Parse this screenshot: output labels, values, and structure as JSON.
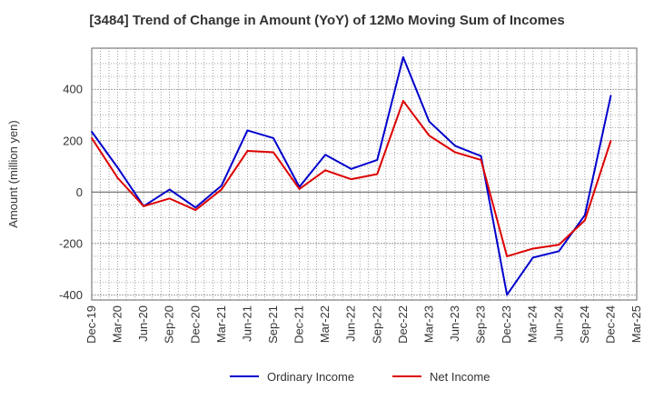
{
  "chart_data": {
    "type": "line",
    "title": "[3484]  Trend of Change in Amount (YoY) of 12Mo Moving Sum of Incomes",
    "ylabel": "Amount (million yen)",
    "xlabel": "",
    "ylim": [
      -420,
      560
    ],
    "yticks": [
      -400,
      -200,
      0,
      200,
      400
    ],
    "categories": [
      "Dec-19",
      "Mar-20",
      "Jun-20",
      "Sep-20",
      "Dec-20",
      "Mar-21",
      "Jun-21",
      "Sep-21",
      "Dec-21",
      "Mar-22",
      "Jun-22",
      "Sep-22",
      "Dec-22",
      "Mar-23",
      "Jun-23",
      "Sep-23",
      "Dec-23",
      "Mar-24",
      "Jun-24",
      "Sep-24",
      "Dec-24",
      "Mar-25"
    ],
    "series": [
      {
        "name": "Ordinary Income",
        "color": "#0000cc",
        "values": [
          235,
          95,
          -55,
          10,
          -60,
          25,
          240,
          210,
          20,
          145,
          90,
          125,
          525,
          275,
          180,
          140,
          -400,
          -255,
          -230,
          -90,
          375,
          null
        ]
      },
      {
        "name": "Net Income",
        "color": "#dd0000",
        "values": [
          210,
          55,
          -55,
          -25,
          -70,
          10,
          160,
          155,
          12,
          85,
          50,
          70,
          355,
          220,
          155,
          125,
          -250,
          -220,
          -205,
          -110,
          200,
          null
        ]
      }
    ],
    "grid": true,
    "legend": "bottom-center"
  }
}
